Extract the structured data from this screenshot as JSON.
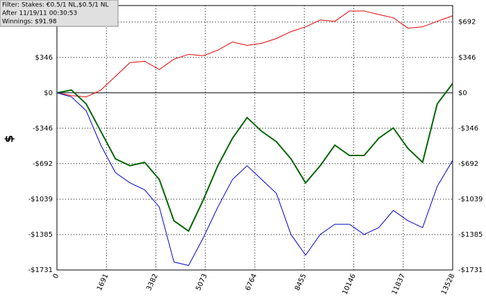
{
  "chart_data": {
    "type": "line",
    "annotations": [
      "Filter: Stakes: €0.5/1 NL,$0.5/1 NL",
      "After 11/19/11 00:30:53",
      "Winnings: $91.98"
    ],
    "ylabel": "$",
    "x": [
      0,
      500,
      1000,
      1500,
      2000,
      2500,
      3000,
      3500,
      4000,
      4500,
      5000,
      5500,
      6000,
      6500,
      7000,
      7500,
      8000,
      8500,
      9000,
      9500,
      10000,
      10500,
      11000,
      11500,
      12000,
      12500,
      13000,
      13528
    ],
    "series": [
      {
        "color": "#e00000",
        "values": [
          0,
          -27,
          -40,
          27,
          161,
          296,
          309,
          228,
          329,
          376,
          363,
          417,
          497,
          464,
          484,
          531,
          598,
          645,
          712,
          699,
          800,
          800,
          766,
          733,
          632,
          645,
          699,
          753
        ]
      },
      {
        "color": "#006400",
        "values": [
          0,
          27,
          -108,
          -376,
          -645,
          -712,
          -679,
          -847,
          -1250,
          -1351,
          -1048,
          -712,
          -444,
          -242,
          -376,
          -477,
          -645,
          -880,
          -712,
          -511,
          -612,
          -612,
          -444,
          -343,
          -544,
          -679,
          -108,
          92
        ]
      },
      {
        "color": "#0000cc",
        "values": [
          0,
          -40,
          -175,
          -511,
          -780,
          -880,
          -948,
          -1116,
          -1653,
          -1687,
          -1418,
          -1116,
          -847,
          -712,
          -847,
          -981,
          -1384,
          -1586,
          -1384,
          -1284,
          -1284,
          -1384,
          -1317,
          -1149,
          -1250,
          -1317,
          -914,
          -659
        ]
      }
    ],
    "xlim": [
      0,
      13528
    ],
    "xticks": [
      0,
      1691,
      3382,
      5073,
      6764,
      8455,
      10146,
      11837,
      13528
    ],
    "ylim": [
      -1731,
      853
    ],
    "yticks": [
      {
        "value": -1731,
        "label": "-$1731"
      },
      {
        "value": -1385,
        "label": "-$1385"
      },
      {
        "value": -1039,
        "label": "-$1039"
      },
      {
        "value": -692,
        "label": "-$692"
      },
      {
        "value": -346,
        "label": "-$346"
      },
      {
        "value": 0,
        "label": "$0"
      },
      {
        "value": 346,
        "label": "$346"
      },
      {
        "value": 692,
        "label": "$692"
      }
    ],
    "grid": true
  }
}
